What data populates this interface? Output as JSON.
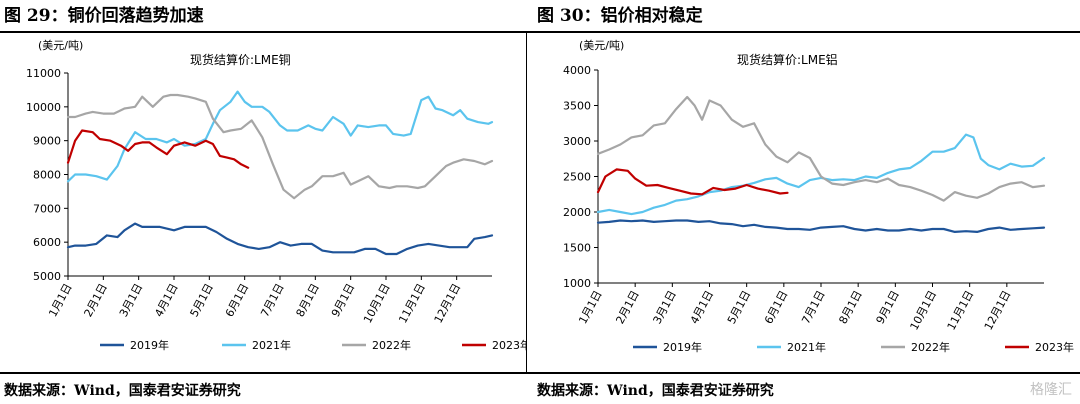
{
  "panels": [
    {
      "figure_title": "图 29：铜价回落趋势加速",
      "source": "数据来源：Wind，国泰君安证券研究"
    },
    {
      "figure_title": "图 30：铝价相对稳定",
      "source": "数据来源：Wind，国泰君安证券研究"
    }
  ],
  "watermark": "格隆汇",
  "chart_data": [
    {
      "type": "line",
      "title": "现货结算价:LME铜",
      "ylabel": "(美元/吨)",
      "xlabel": "",
      "ylim": [
        5000,
        11000
      ],
      "yticks": [
        5000,
        6000,
        7000,
        8000,
        9000,
        10000,
        11000
      ],
      "xlim": [
        0,
        12
      ],
      "x_tick_labels": [
        "1月1日",
        "2月1日",
        "3月1日",
        "4月1日",
        "5月1日",
        "6月1日",
        "7月1日",
        "8月1日",
        "9月1日",
        "10月1日",
        "11月1日",
        "12月1日"
      ],
      "grid": false,
      "legend_position": "bottom",
      "series": [
        {
          "name": "2019年",
          "color": "#1f5499",
          "x": [
            0,
            0.2,
            0.5,
            0.8,
            1.1,
            1.4,
            1.6,
            1.9,
            2.1,
            2.3,
            2.6,
            3.0,
            3.3,
            3.6,
            3.9,
            4.2,
            4.5,
            4.8,
            5.1,
            5.4,
            5.7,
            6.0,
            6.3,
            6.6,
            6.9,
            7.2,
            7.5,
            7.8,
            8.1,
            8.4,
            8.7,
            9.0,
            9.3,
            9.6,
            9.9,
            10.2,
            10.5,
            10.8,
            11.1,
            11.3,
            11.5,
            11.8,
            12.0
          ],
          "y": [
            5850,
            5900,
            5900,
            5950,
            6200,
            6150,
            6350,
            6550,
            6450,
            6450,
            6450,
            6350,
            6450,
            6450,
            6450,
            6300,
            6100,
            5950,
            5850,
            5800,
            5850,
            6000,
            5900,
            5950,
            5950,
            5750,
            5700,
            5700,
            5700,
            5800,
            5800,
            5650,
            5650,
            5800,
            5900,
            5950,
            5900,
            5850,
            5850,
            5850,
            6100,
            6150,
            6200
          ]
        },
        {
          "name": "2021年",
          "color": "#5bc4ee",
          "x": [
            0,
            0.2,
            0.5,
            0.8,
            1.1,
            1.4,
            1.6,
            1.9,
            2.2,
            2.5,
            2.8,
            3.0,
            3.3,
            3.6,
            3.9,
            4.1,
            4.3,
            4.6,
            4.8,
            5.0,
            5.2,
            5.5,
            5.7,
            6.0,
            6.2,
            6.5,
            6.8,
            7.0,
            7.2,
            7.5,
            7.8,
            8.0,
            8.2,
            8.5,
            8.8,
            9.0,
            9.2,
            9.5,
            9.7,
            10.0,
            10.2,
            10.4,
            10.6,
            10.9,
            11.1,
            11.3,
            11.6,
            11.9,
            12.0
          ],
          "y": [
            7800,
            8000,
            8000,
            7950,
            7850,
            8250,
            8750,
            9250,
            9050,
            9050,
            8950,
            9050,
            8850,
            8900,
            9050,
            9500,
            9900,
            10150,
            10450,
            10150,
            10000,
            10000,
            9850,
            9450,
            9300,
            9300,
            9450,
            9350,
            9300,
            9700,
            9500,
            9150,
            9450,
            9400,
            9450,
            9450,
            9200,
            9150,
            9200,
            10200,
            10300,
            9950,
            9900,
            9750,
            9900,
            9650,
            9550,
            9500,
            9550
          ]
        },
        {
          "name": "2022年",
          "color": "#a6a6a6",
          "x": [
            0,
            0.2,
            0.5,
            0.7,
            1.0,
            1.3,
            1.6,
            1.9,
            2.1,
            2.4,
            2.7,
            2.9,
            3.1,
            3.4,
            3.6,
            3.9,
            4.1,
            4.4,
            4.6,
            4.9,
            5.2,
            5.5,
            5.8,
            6.1,
            6.4,
            6.7,
            6.9,
            7.2,
            7.5,
            7.8,
            8.0,
            8.3,
            8.5,
            8.8,
            9.1,
            9.3,
            9.6,
            9.9,
            10.1,
            10.4,
            10.7,
            10.9,
            11.2,
            11.5,
            11.8,
            12.0
          ],
          "y": [
            9700,
            9700,
            9800,
            9850,
            9800,
            9800,
            9950,
            10000,
            10300,
            10000,
            10300,
            10350,
            10350,
            10300,
            10250,
            10150,
            9650,
            9250,
            9300,
            9350,
            9600,
            9100,
            8300,
            7550,
            7300,
            7550,
            7650,
            7950,
            7950,
            8050,
            7700,
            7850,
            7950,
            7650,
            7600,
            7650,
            7650,
            7600,
            7650,
            7950,
            8250,
            8350,
            8450,
            8400,
            8300,
            8400
          ]
        },
        {
          "name": "2023年",
          "color": "#c00000",
          "x": [
            0,
            0.2,
            0.4,
            0.7,
            0.9,
            1.2,
            1.5,
            1.7,
            1.9,
            2.1,
            2.3,
            2.5,
            2.8,
            3.0,
            3.3,
            3.6,
            3.9,
            4.1,
            4.3,
            4.5,
            4.7,
            4.9,
            5.1
          ],
          "y": [
            8350,
            9000,
            9300,
            9250,
            9050,
            9000,
            8850,
            8700,
            8900,
            8950,
            8950,
            8800,
            8600,
            8850,
            8950,
            8850,
            9000,
            8900,
            8550,
            8500,
            8450,
            8300,
            8200
          ]
        }
      ]
    },
    {
      "type": "line",
      "title": "现货结算价:LME铝",
      "ylabel": "(美元/吨)",
      "xlabel": "",
      "ylim": [
        1000,
        4000
      ],
      "yticks": [
        1000,
        1500,
        2000,
        2500,
        3000,
        3500,
        4000
      ],
      "xlim": [
        0,
        12
      ],
      "x_tick_labels": [
        "1月1日",
        "2月1日",
        "3月1日",
        "4月1日",
        "5月1日",
        "6月1日",
        "7月1日",
        "8月1日",
        "9月1日",
        "10月1日",
        "11月1日",
        "12月1日"
      ],
      "grid": false,
      "legend_position": "bottom",
      "series": [
        {
          "name": "2019年",
          "color": "#1f5499",
          "x": [
            0,
            0.3,
            0.6,
            0.9,
            1.2,
            1.5,
            1.8,
            2.1,
            2.4,
            2.7,
            3.0,
            3.3,
            3.6,
            3.9,
            4.2,
            4.5,
            4.8,
            5.1,
            5.4,
            5.7,
            6.0,
            6.3,
            6.6,
            6.9,
            7.2,
            7.5,
            7.8,
            8.1,
            8.4,
            8.7,
            9.0,
            9.3,
            9.6,
            9.9,
            10.2,
            10.5,
            10.8,
            11.1,
            11.4,
            11.7,
            12.0
          ],
          "y": [
            1850,
            1860,
            1880,
            1870,
            1880,
            1860,
            1870,
            1880,
            1880,
            1860,
            1870,
            1840,
            1830,
            1800,
            1820,
            1790,
            1780,
            1760,
            1760,
            1750,
            1780,
            1790,
            1800,
            1760,
            1740,
            1760,
            1740,
            1740,
            1760,
            1740,
            1760,
            1760,
            1720,
            1730,
            1720,
            1760,
            1780,
            1750,
            1760,
            1770,
            1780
          ]
        },
        {
          "name": "2021年",
          "color": "#5bc4ee",
          "x": [
            0,
            0.3,
            0.6,
            0.9,
            1.2,
            1.5,
            1.8,
            2.1,
            2.4,
            2.7,
            3.0,
            3.3,
            3.6,
            3.9,
            4.2,
            4.5,
            4.8,
            5.1,
            5.4,
            5.7,
            6.0,
            6.3,
            6.6,
            6.9,
            7.2,
            7.5,
            7.8,
            8.1,
            8.4,
            8.7,
            9.0,
            9.3,
            9.6,
            9.9,
            10.1,
            10.3,
            10.5,
            10.8,
            11.1,
            11.4,
            11.7,
            12.0
          ],
          "y": [
            2000,
            2030,
            2000,
            1970,
            2000,
            2060,
            2100,
            2160,
            2180,
            2220,
            2280,
            2300,
            2350,
            2370,
            2410,
            2460,
            2480,
            2400,
            2350,
            2450,
            2480,
            2450,
            2460,
            2450,
            2500,
            2480,
            2550,
            2600,
            2620,
            2720,
            2850,
            2850,
            2900,
            3090,
            3050,
            2750,
            2660,
            2600,
            2680,
            2640,
            2650,
            2760
          ]
        },
        {
          "name": "2022年",
          "color": "#a6a6a6",
          "x": [
            0,
            0.3,
            0.6,
            0.9,
            1.2,
            1.5,
            1.8,
            2.1,
            2.4,
            2.6,
            2.8,
            3.0,
            3.3,
            3.6,
            3.9,
            4.2,
            4.5,
            4.8,
            5.1,
            5.4,
            5.7,
            6.0,
            6.3,
            6.6,
            6.9,
            7.2,
            7.5,
            7.8,
            8.1,
            8.4,
            8.7,
            9.0,
            9.3,
            9.6,
            9.9,
            10.2,
            10.5,
            10.8,
            11.1,
            11.4,
            11.7,
            12.0
          ],
          "y": [
            2820,
            2880,
            2950,
            3050,
            3080,
            3220,
            3250,
            3450,
            3620,
            3500,
            3300,
            3570,
            3500,
            3300,
            3200,
            3250,
            2950,
            2780,
            2700,
            2840,
            2760,
            2500,
            2400,
            2380,
            2420,
            2450,
            2420,
            2470,
            2380,
            2350,
            2300,
            2240,
            2160,
            2280,
            2230,
            2200,
            2260,
            2350,
            2400,
            2420,
            2350,
            2370
          ]
        },
        {
          "name": "2023年",
          "color": "#c00000",
          "x": [
            0,
            0.2,
            0.5,
            0.8,
            1.0,
            1.3,
            1.6,
            1.9,
            2.2,
            2.5,
            2.8,
            3.1,
            3.4,
            3.7,
            4.0,
            4.3,
            4.6,
            4.9,
            5.1
          ],
          "y": [
            2280,
            2500,
            2600,
            2580,
            2470,
            2370,
            2380,
            2340,
            2300,
            2260,
            2250,
            2340,
            2310,
            2330,
            2380,
            2330,
            2300,
            2260,
            2270
          ]
        }
      ]
    }
  ]
}
